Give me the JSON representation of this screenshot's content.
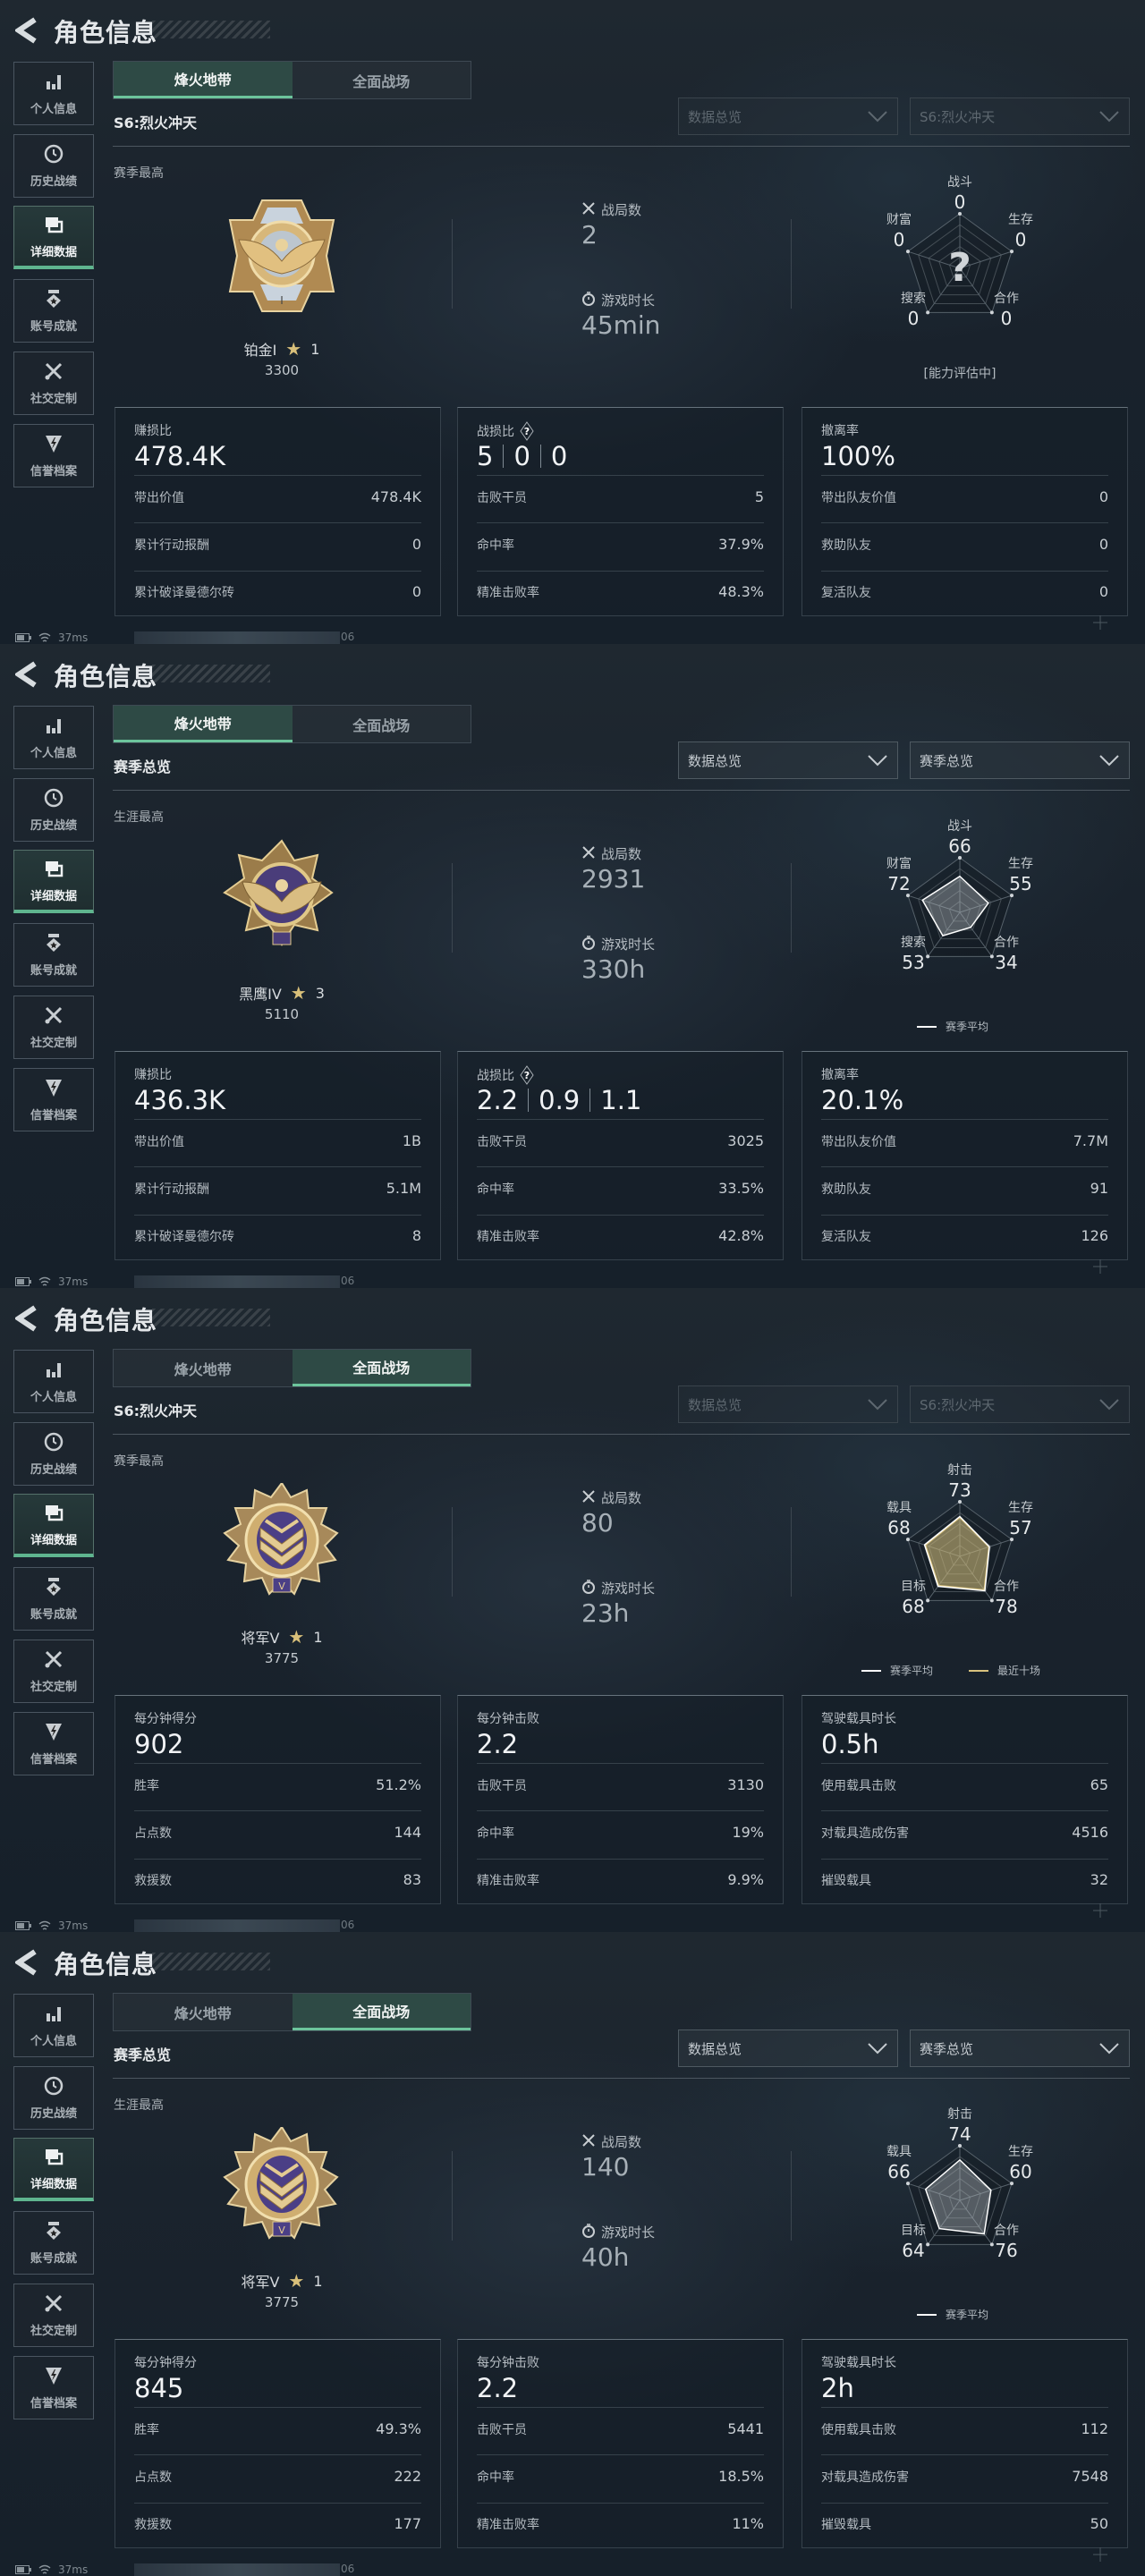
{
  "app": {
    "title": "角色信息"
  },
  "sidebar": [
    {
      "label": "个人信息",
      "icon": "bar-chart-icon"
    },
    {
      "label": "历史战绩",
      "icon": "history-clock-icon"
    },
    {
      "label": "详细数据",
      "icon": "folders-icon"
    },
    {
      "label": "账号成就",
      "icon": "achievement-badge-icon"
    },
    {
      "label": "社交定制",
      "icon": "tools-icon"
    },
    {
      "label": "信誉档案",
      "icon": "credit-shield-icon"
    }
  ],
  "sidebar_active": 2,
  "mode_tabs": [
    "烽火地带",
    "全面战场"
  ],
  "colors": {
    "accent": "#6cc49c",
    "season_avg": "#ffffff",
    "recent_ten": "#d8c27e",
    "star": "#d9c07a"
  },
  "footer": {
    "ping": "37ms",
    "code": "06"
  },
  "panels": [
    {
      "active_tab": 0,
      "season_label": "S6:烈火冲天",
      "dropdowns": [
        {
          "value": "数据总览",
          "enabled": false
        },
        {
          "value": "S6:烈火冲天",
          "enabled": false
        }
      ],
      "rank_caption": "赛季最高",
      "rank": {
        "name": "铂金I",
        "stars": "1",
        "score": "3300",
        "medal": "platinum-eagle"
      },
      "stats": [
        {
          "label": "战局数",
          "value": "2",
          "icon": "crossed-swords-icon"
        },
        {
          "label": "游戏时长",
          "value": "45min",
          "icon": "stopwatch-icon"
        }
      ],
      "radar": {
        "axes": [
          "战斗",
          "生存",
          "合作",
          "搜索",
          "财富"
        ],
        "values": [
          "0",
          "0",
          "0",
          "0",
          "0"
        ],
        "placeholder": "?",
        "status": "[能力评估中]",
        "series": []
      },
      "cards": [
        {
          "title": "赚损比",
          "value": "478.4K",
          "rows": [
            {
              "label": "带出价值",
              "value": "478.4K"
            },
            {
              "label": "累计行动报酬",
              "value": "0"
            },
            {
              "label": "累计破译曼德尔砖",
              "value": "0"
            }
          ]
        },
        {
          "title": "战损比",
          "help": true,
          "values": [
            "5",
            "0",
            "0"
          ],
          "rows": [
            {
              "label": "击败干员",
              "value": "5"
            },
            {
              "label": "命中率",
              "value": "37.9%"
            },
            {
              "label": "精准击败率",
              "value": "48.3%"
            }
          ]
        },
        {
          "title": "撤离率",
          "value": "100%",
          "rows": [
            {
              "label": "带出队友价值",
              "value": "0"
            },
            {
              "label": "救助队友",
              "value": "0"
            },
            {
              "label": "复活队友",
              "value": "0"
            }
          ]
        }
      ]
    },
    {
      "active_tab": 0,
      "season_label": "赛季总览",
      "dropdowns": [
        {
          "value": "数据总览",
          "enabled": true
        },
        {
          "value": "赛季总览",
          "enabled": true
        }
      ],
      "rank_caption": "生涯最高",
      "rank": {
        "name": "黑鹰IV",
        "stars": "3",
        "score": "5110",
        "medal": "black-hawk"
      },
      "stats": [
        {
          "label": "战局数",
          "value": "2931",
          "icon": "crossed-swords-icon"
        },
        {
          "label": "游戏时长",
          "value": "330h",
          "icon": "stopwatch-icon"
        }
      ],
      "radar": {
        "axes": [
          "战斗",
          "生存",
          "合作",
          "搜索",
          "财富"
        ],
        "values": [
          "66",
          "55",
          "34",
          "53",
          "72"
        ],
        "series": [
          {
            "name": "赛季平均",
            "color": "#ffffff",
            "values": [
              66,
              55,
              34,
              53,
              72
            ]
          }
        ]
      },
      "cards": [
        {
          "title": "赚损比",
          "value": "436.3K",
          "rows": [
            {
              "label": "带出价值",
              "value": "1B"
            },
            {
              "label": "累计行动报酬",
              "value": "5.1M"
            },
            {
              "label": "累计破译曼德尔砖",
              "value": "8"
            }
          ]
        },
        {
          "title": "战损比",
          "help": true,
          "values": [
            "2.2",
            "0.9",
            "1.1"
          ],
          "rows": [
            {
              "label": "击败干员",
              "value": "3025"
            },
            {
              "label": "命中率",
              "value": "33.5%"
            },
            {
              "label": "精准击败率",
              "value": "42.8%"
            }
          ]
        },
        {
          "title": "撤离率",
          "value": "20.1%",
          "rows": [
            {
              "label": "带出队友价值",
              "value": "7.7M"
            },
            {
              "label": "救助队友",
              "value": "91"
            },
            {
              "label": "复活队友",
              "value": "126"
            }
          ]
        }
      ]
    },
    {
      "active_tab": 1,
      "season_label": "S6:烈火冲天",
      "dropdowns": [
        {
          "value": "数据总览",
          "enabled": false
        },
        {
          "value": "S6:烈火冲天",
          "enabled": false
        }
      ],
      "rank_caption": "赛季最高",
      "rank": {
        "name": "将军V",
        "stars": "1",
        "score": "3775",
        "medal": "general-chevron"
      },
      "stats": [
        {
          "label": "战局数",
          "value": "80",
          "icon": "crossed-swords-icon"
        },
        {
          "label": "游戏时长",
          "value": "23h",
          "icon": "stopwatch-icon"
        }
      ],
      "radar": {
        "axes": [
          "射击",
          "生存",
          "合作",
          "目标",
          "载具"
        ],
        "values": [
          "73",
          "57",
          "78",
          "68",
          "68"
        ],
        "series": [
          {
            "name": "赛季平均",
            "color": "#ffffff",
            "values": [
              73,
              57,
              78,
              68,
              68
            ]
          },
          {
            "name": "最近十场",
            "color": "#d8c27e",
            "values": [
              71,
              56,
              76,
              66,
              66
            ]
          }
        ]
      },
      "cards": [
        {
          "title": "每分钟得分",
          "value": "902",
          "rows": [
            {
              "label": "胜率",
              "value": "51.2%"
            },
            {
              "label": "占点数",
              "value": "144"
            },
            {
              "label": "救援数",
              "value": "83"
            }
          ]
        },
        {
          "title": "每分钟击败",
          "value": "2.2",
          "rows": [
            {
              "label": "击败干员",
              "value": "3130"
            },
            {
              "label": "命中率",
              "value": "19%"
            },
            {
              "label": "精准击败率",
              "value": "9.9%"
            }
          ]
        },
        {
          "title": "驾驶载具时长",
          "value": "0.5h",
          "rows": [
            {
              "label": "使用载具击败",
              "value": "65"
            },
            {
              "label": "对载具造成伤害",
              "value": "4516"
            },
            {
              "label": "摧毁载具",
              "value": "32"
            }
          ]
        }
      ]
    },
    {
      "active_tab": 1,
      "season_label": "赛季总览",
      "dropdowns": [
        {
          "value": "数据总览",
          "enabled": true
        },
        {
          "value": "赛季总览",
          "enabled": true
        }
      ],
      "rank_caption": "生涯最高",
      "rank": {
        "name": "将军V",
        "stars": "1",
        "score": "3775",
        "medal": "general-chevron"
      },
      "stats": [
        {
          "label": "战局数",
          "value": "140",
          "icon": "crossed-swords-icon"
        },
        {
          "label": "游戏时长",
          "value": "40h",
          "icon": "stopwatch-icon"
        }
      ],
      "radar": {
        "axes": [
          "射击",
          "生存",
          "合作",
          "目标",
          "载具"
        ],
        "values": [
          "74",
          "60",
          "76",
          "64",
          "66"
        ],
        "series": [
          {
            "name": "赛季平均",
            "color": "#ffffff",
            "values": [
              74,
              60,
              76,
              64,
              66
            ]
          }
        ]
      },
      "cards": [
        {
          "title": "每分钟得分",
          "value": "845",
          "rows": [
            {
              "label": "胜率",
              "value": "49.3%"
            },
            {
              "label": "占点数",
              "value": "222"
            },
            {
              "label": "救援数",
              "value": "177"
            }
          ]
        },
        {
          "title": "每分钟击败",
          "value": "2.2",
          "rows": [
            {
              "label": "击败干员",
              "value": "5441"
            },
            {
              "label": "命中率",
              "value": "18.5%"
            },
            {
              "label": "精准击败率",
              "value": "11%"
            }
          ]
        },
        {
          "title": "驾驶载具时长",
          "value": "2h",
          "rows": [
            {
              "label": "使用载具击败",
              "value": "112"
            },
            {
              "label": "对载具造成伤害",
              "value": "7548"
            },
            {
              "label": "摧毁载具",
              "value": "50"
            }
          ]
        }
      ]
    }
  ]
}
